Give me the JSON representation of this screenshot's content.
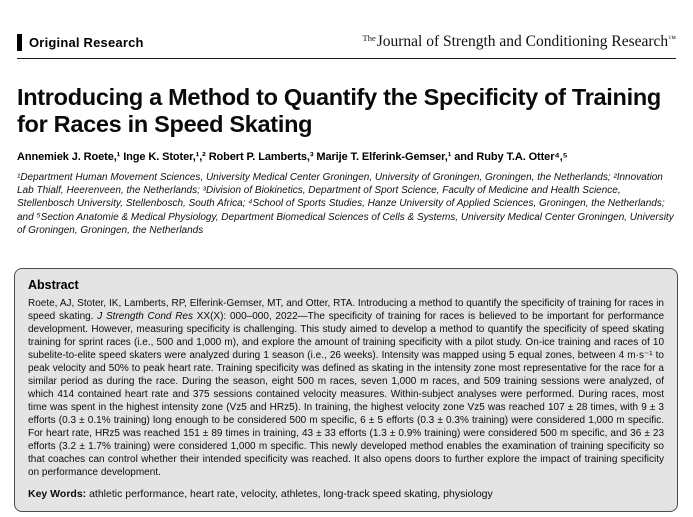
{
  "header": {
    "section_label": "Original Research",
    "journal_the": "The",
    "journal_name": "Journal of Strength and Conditioning Research",
    "journal_tm": "™"
  },
  "article": {
    "title": "Introducing a Method to Quantify the Specificity of Training for Races in Speed Skating",
    "authors": "Annemiek J. Roete,¹ Inge K. Stoter,¹,² Robert P. Lamberts,³ Marije T. Elferink-Gemser,¹ and Ruby T.A. Otter⁴,⁵",
    "affiliations": "¹Department Human Movement Sciences, University Medical Center Groningen, University of Groningen, Groningen, the Netherlands; ²Innovation Lab Thialf, Heerenveen, the Netherlands; ³Division of Biokinetics, Department of Sport Science, Faculty of Medicine and Health Science, Stellenbosch University, Stellenbosch, South Africa; ⁴School of Sports Studies, Hanze University of Applied Sciences, Groningen, the Netherlands; and ⁵Section Anatomie & Medical Physiology, Department Biomedical Sciences of Cells & Systems, University Medical Center Groningen, University of Groningen, Groningen, the Netherlands"
  },
  "abstract": {
    "heading": "Abstract",
    "citation": "Roete, AJ, Stoter, IK, Lamberts, RP, Elferink-Gemser, MT, and Otter, RTA. Introducing a method to quantify the specificity of training for races in speed skating. ",
    "journal_ref": "J Strength Cond Res",
    "body": " XX(X): 000–000, 2022—The specificity of training for races is believed to be important for performance development. However, measuring specificity is challenging. This study aimed to develop a method to quantify the specificity of speed skating training for sprint races (i.e., 500 and 1,000 m), and explore the amount of training specificity with a pilot study. On-ice training and races of 10 subelite-to-elite speed skaters were analyzed during 1 season (i.e., 26 weeks). Intensity was mapped using 5 equal zones, between 4 m·s⁻¹ to peak velocity and 50% to peak heart rate. Training specificity was defined as skating in the intensity zone most representative for the race for a similar period as during the race. During the season, eight 500 m races, seven 1,000 m races, and 509 training sessions were analyzed, of which 414 contained heart rate and 375 sessions contained velocity measures. Within-subject analyses were performed. During races, most time was spent in the highest intensity zone (Vz5 and HRz5). In training, the highest velocity zone Vz5 was reached 107 ± 28 times, with 9 ± 3 efforts (0.3 ± 0.1% training) long enough to be considered 500 m specific, 6 ± 5 efforts (0.3 ± 0.3% training) were considered 1,000 m specific. For heart rate, HRz5 was reached 151 ± 89 times in training, 43 ± 33 efforts (1.3 ± 0.9% training) were considered 500 m specific, and 36 ± 23 efforts (3.2 ± 1.7% training) were considered 1,000 m specific. This newly developed method enables the examination of training specificity so that coaches can control whether their intended specificity was reached. It also opens doors to further explore the impact of training specificity on performance development."
  },
  "keywords": {
    "label": "Key Words:",
    "text": " athletic performance, heart rate, velocity, athletes, long-track speed skating, physiology"
  }
}
